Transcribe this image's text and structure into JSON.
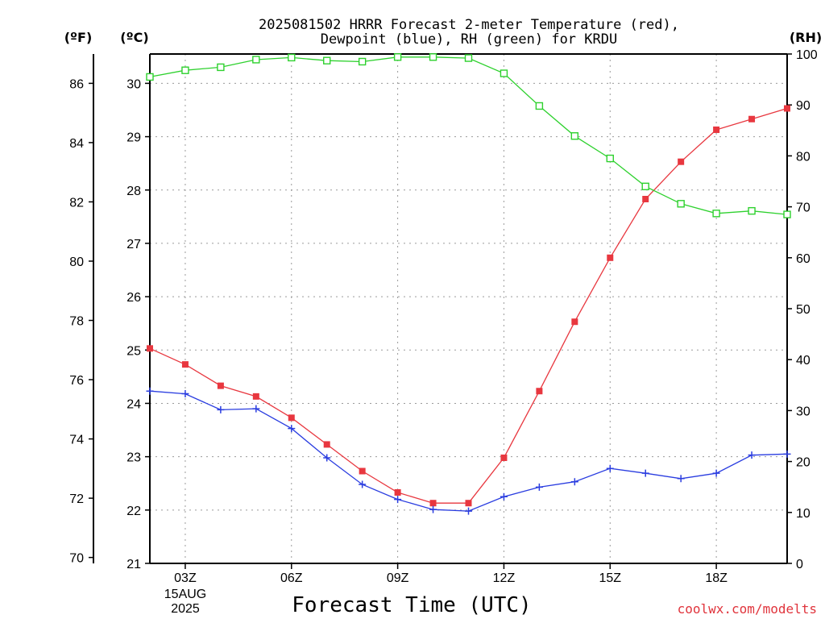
{
  "chart_data": {
    "type": "line",
    "title_line1": "2025081502 HRRR Forecast 2-meter Temperature (red),",
    "title_line2": "Dewpoint (blue), RH (green) for KRDU",
    "xlabel": "Forecast Time (UTC)",
    "credit": "coolwx.com/modelts",
    "unit_f": "(ºF)",
    "unit_c": "(ºC)",
    "unit_rh": "(RH)",
    "x_hours": [
      2,
      3,
      4,
      5,
      6,
      7,
      8,
      9,
      10,
      11,
      12,
      13,
      14,
      15,
      16,
      17,
      18,
      19,
      20
    ],
    "x_range": [
      2,
      20
    ],
    "x_ticks": [
      {
        "x": 3,
        "label": "03Z"
      },
      {
        "x": 6,
        "label": "06Z"
      },
      {
        "x": 9,
        "label": "09Z"
      },
      {
        "x": 12,
        "label": "12Z"
      },
      {
        "x": 15,
        "label": "15Z"
      },
      {
        "x": 18,
        "label": "18Z"
      }
    ],
    "date_label_line1": "15AUG",
    "date_label_line2": "2025",
    "celsius_range": [
      21,
      30.55
    ],
    "celsius_ticks": [
      21,
      22,
      23,
      24,
      25,
      26,
      27,
      28,
      29,
      30
    ],
    "fahrenheit_ticks": [
      70,
      72,
      74,
      76,
      78,
      80,
      82,
      84,
      86
    ],
    "rh_range": [
      0,
      100
    ],
    "rh_ticks": [
      0,
      10,
      20,
      30,
      40,
      50,
      60,
      70,
      80,
      90,
      100
    ],
    "series": [
      {
        "name": "Temperature",
        "color": "#e8373f",
        "axis": "celsius",
        "marker": "filled-square",
        "values": [
          25.03,
          24.73,
          24.33,
          24.13,
          23.73,
          23.23,
          22.73,
          22.33,
          22.13,
          22.13,
          22.98,
          24.23,
          25.53,
          26.73,
          27.83,
          28.53,
          29.13,
          29.33,
          29.53
        ]
      },
      {
        "name": "Dewpoint",
        "color": "#2a3de0",
        "axis": "celsius",
        "marker": "plus",
        "values": [
          24.23,
          24.18,
          23.88,
          23.9,
          23.53,
          22.98,
          22.48,
          22.2,
          22.01,
          21.98,
          22.25,
          22.43,
          22.53,
          22.78,
          22.69,
          22.59,
          22.69,
          23.03,
          23.05
        ]
      },
      {
        "name": "RH",
        "color": "#2ed12e",
        "axis": "rh",
        "marker": "open-square",
        "values": [
          95.5,
          96.8,
          97.4,
          98.9,
          99.3,
          98.7,
          98.5,
          99.4,
          99.4,
          99.2,
          96.2,
          89.8,
          83.9,
          79.5,
          74.0,
          70.6,
          68.7,
          69.2,
          68.5
        ]
      }
    ],
    "grid": true
  }
}
